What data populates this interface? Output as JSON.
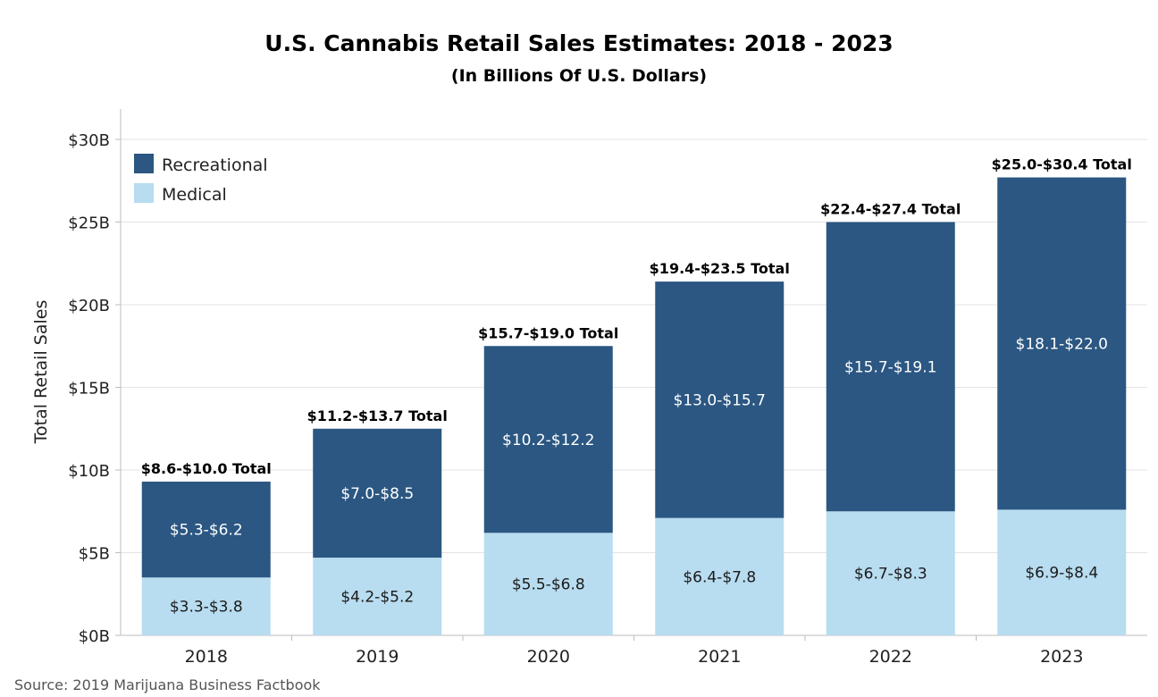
{
  "title": "U.S. Cannabis Retail Sales Estimates: 2018 - 2023",
  "subtitle": "(In Billions Of U.S. Dollars)",
  "source": "Source: 2019 Marijuana Business Factbook",
  "colors": {
    "recreational": "#2b5782",
    "medical": "#b8dcf0",
    "grid": "#e3e3e3",
    "axis": "#bdbdbd"
  },
  "chart_data": {
    "type": "bar",
    "stacked": true,
    "title": "U.S. Cannabis Retail Sales Estimates: 2018 - 2023",
    "subtitle": "(In Billions Of U.S. Dollars)",
    "xlabel": "",
    "ylabel": "Total Retail Sales",
    "ylim": [
      0,
      32
    ],
    "yticks": [
      0,
      5,
      10,
      15,
      20,
      25,
      30
    ],
    "ytick_labels": [
      "$0B",
      "$5B",
      "$10B",
      "$15B",
      "$20B",
      "$25B",
      "$30B"
    ],
    "grid": true,
    "legend_position": "top-left",
    "categories": [
      "2018",
      "2019",
      "2020",
      "2021",
      "2022",
      "2023"
    ],
    "series": [
      {
        "name": "Medical",
        "values": [
          3.5,
          4.7,
          6.2,
          7.1,
          7.5,
          7.6
        ],
        "labels": [
          "$3.3-$3.8",
          "$4.2-$5.2",
          "$5.5-$6.8",
          "$6.4-$7.8",
          "$6.7-$8.3",
          "$6.9-$8.4"
        ]
      },
      {
        "name": "Recreational",
        "values": [
          5.8,
          7.8,
          11.3,
          14.3,
          17.5,
          20.1
        ],
        "labels": [
          "$5.3-$6.2",
          "$7.0-$8.5",
          "$10.2-$12.2",
          "$13.0-$15.7",
          "$15.7-$19.1",
          "$18.1-$22.0"
        ]
      }
    ],
    "totals": [
      "$8.6-$10.0 Total",
      "$11.2-$13.7 Total",
      "$15.7-$19.0 Total",
      "$19.4-$23.5 Total",
      "$22.4-$27.4 Total",
      "$25.0-$30.4 Total"
    ],
    "legend": [
      "Recreational",
      "Medical"
    ]
  }
}
